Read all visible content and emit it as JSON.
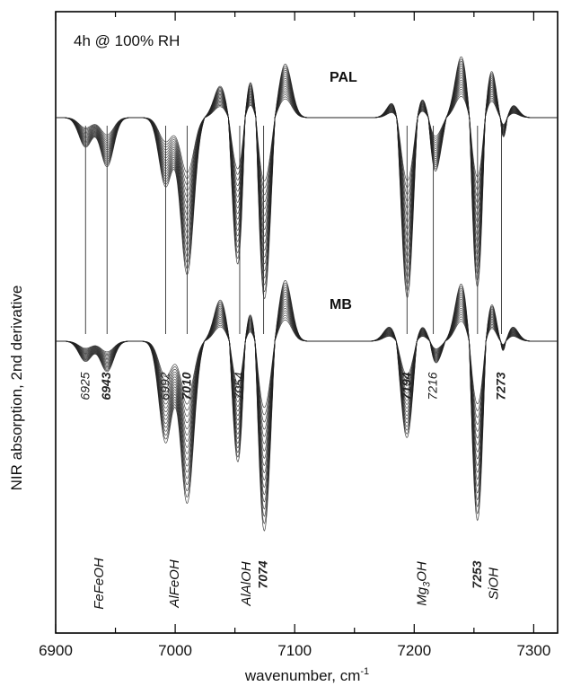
{
  "chart_data": {
    "type": "line",
    "annotation": "4h @ 100% RH",
    "xlabel": "wavenumber, cm",
    "xlabel_sup": "-1",
    "ylabel": "NIR absorption, 2nd derivative",
    "xlim": [
      6900,
      7320
    ],
    "x_ticks": [
      "6900",
      "7000",
      "7100",
      "7200",
      "7300"
    ],
    "series": [
      {
        "name": "PAL",
        "peaks": [
          [
            6925,
            -0.15
          ],
          [
            6943,
            -0.25
          ],
          [
            6992,
            -0.35
          ],
          [
            7010,
            -0.8
          ],
          [
            7038,
            0.45
          ],
          [
            7054,
            -1.0
          ],
          [
            7062,
            0.9
          ],
          [
            7074,
            -1.0
          ],
          [
            7092,
            0.75
          ],
          [
            7184,
            0.3
          ],
          [
            7194,
            -1.0
          ],
          [
            7207,
            0.4
          ],
          [
            7216,
            -0.35
          ],
          [
            7240,
            0.9
          ],
          [
            7253,
            -1.0
          ],
          [
            7265,
            0.9
          ],
          [
            7273,
            -0.5
          ],
          [
            7280,
            0.3
          ]
        ]
      },
      {
        "name": "MB",
        "peaks": [
          [
            6925,
            -0.1
          ],
          [
            6943,
            -0.15
          ],
          [
            6992,
            -0.5
          ],
          [
            7010,
            -0.8
          ],
          [
            7038,
            0.55
          ],
          [
            7054,
            -0.8
          ],
          [
            7062,
            0.7
          ],
          [
            7074,
            -1.0
          ],
          [
            7092,
            0.8
          ],
          [
            7180,
            0.2
          ],
          [
            7194,
            -0.5
          ],
          [
            7207,
            0.25
          ],
          [
            7216,
            -0.15
          ],
          [
            7240,
            0.8
          ],
          [
            7253,
            -1.0
          ],
          [
            7265,
            0.7
          ],
          [
            7273,
            -0.4
          ],
          [
            7280,
            0.3
          ]
        ]
      }
    ],
    "band_positions": [
      "6925",
      "6943",
      "6992",
      "7010",
      "7054",
      "7074",
      "7194",
      "7216",
      "7253",
      "7273"
    ],
    "groups": [
      {
        "text": "FeFeOH",
        "sub": ""
      },
      {
        "text": "AlFeOH",
        "sub": ""
      },
      {
        "text": "AlAlOH",
        "sub": ""
      },
      {
        "text": "Mg",
        "sub": "3",
        "tail": "OH"
      },
      {
        "text": "SiOH",
        "sub": ""
      }
    ]
  }
}
